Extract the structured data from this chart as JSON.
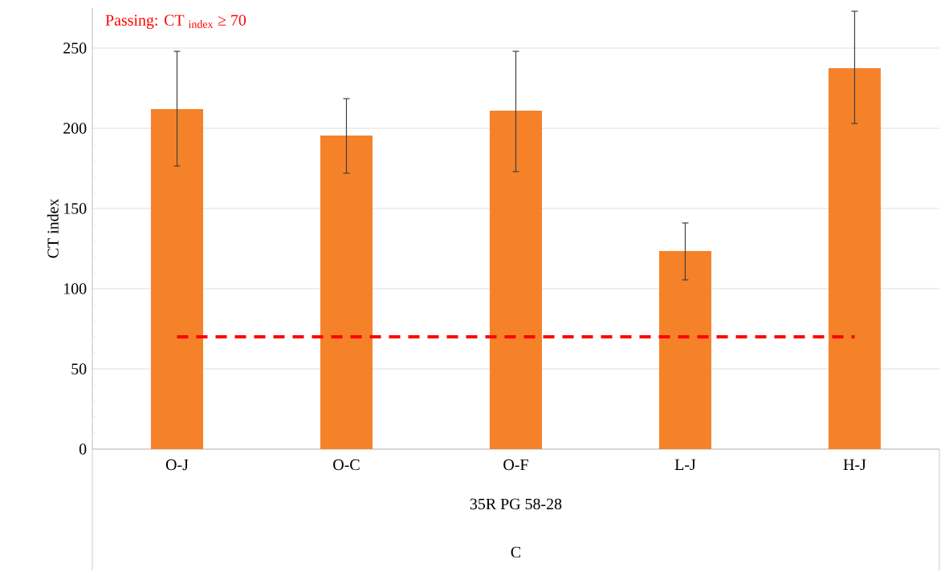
{
  "chart_data": {
    "type": "bar",
    "categories": [
      "O-J",
      "O-C",
      "O-F",
      "L-J",
      "H-J"
    ],
    "values": [
      212,
      195.5,
      211,
      123.5,
      237.5
    ],
    "errors": [
      [
        176.5,
        248
      ],
      [
        172,
        218.5
      ],
      [
        173,
        248
      ],
      [
        105.5,
        141
      ],
      [
        203,
        273
      ]
    ],
    "color": "#f58229",
    "ylabel": "CT index",
    "xlabel": "35R PG 58-28",
    "annotations": [
      "C"
    ],
    "ref_lines": [
      {
        "axis": "y",
        "value": 70,
        "label": "Passing: CT $_{index}$ ≥ 70",
        "color": "#ff0000",
        "line_style": "dashed"
      }
    ],
    "ylim": [
      0,
      275
    ],
    "yticks": [
      0,
      50,
      100,
      150,
      200,
      250
    ],
    "grid": "y"
  }
}
